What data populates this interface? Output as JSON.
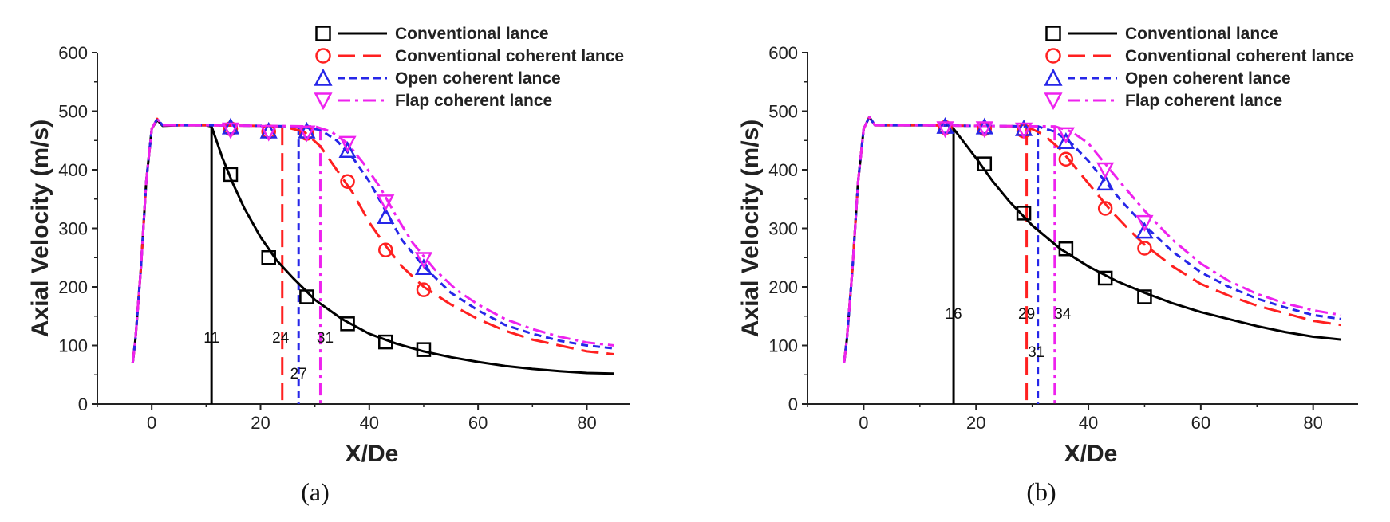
{
  "chart_data": [
    {
      "type": "line",
      "panel_label": "(a)",
      "xlabel": "X/De",
      "ylabel": "Axial Velocity (m/s)",
      "xlim": [
        -10,
        88
      ],
      "ylim": [
        0,
        600
      ],
      "xticks": [
        0,
        20,
        40,
        60,
        80
      ],
      "yticks": [
        0,
        100,
        200,
        300,
        400,
        500,
        600
      ],
      "legend_position": "top-right",
      "series": [
        {
          "name": "Conventional lance",
          "color": "#000000",
          "dash": "solid",
          "marker": "square",
          "curve": [
            [
              -3.5,
              70
            ],
            [
              -3,
              110
            ],
            [
              -2,
              230
            ],
            [
              -1,
              380
            ],
            [
              0,
              470
            ],
            [
              1,
              485
            ],
            [
              2,
              475
            ],
            [
              5,
              476
            ],
            [
              10,
              476
            ],
            [
              11,
              474
            ],
            [
              13,
              420
            ],
            [
              15,
              375
            ],
            [
              17,
              335
            ],
            [
              20,
              285
            ],
            [
              23,
              245
            ],
            [
              26,
              215
            ],
            [
              30,
              178
            ],
            [
              35,
              145
            ],
            [
              40,
              120
            ],
            [
              45,
              103
            ],
            [
              50,
              90
            ],
            [
              55,
              80
            ],
            [
              60,
              72
            ],
            [
              65,
              65
            ],
            [
              70,
              60
            ],
            [
              75,
              56
            ],
            [
              80,
              53
            ],
            [
              85,
              52
            ]
          ],
          "points": [
            [
              14.5,
              392
            ],
            [
              21.5,
              250
            ],
            [
              28.5,
              183
            ],
            [
              36,
              137
            ],
            [
              43,
              106
            ],
            [
              50,
              93
            ]
          ],
          "potential_core": 11
        },
        {
          "name": "Conventional coherent lance",
          "color": "#ff2020",
          "dash": "long-dash",
          "marker": "circle",
          "curve": [
            [
              -3.5,
              70
            ],
            [
              -3,
              110
            ],
            [
              -2,
              230
            ],
            [
              -1,
              380
            ],
            [
              0,
              470
            ],
            [
              1,
              487
            ],
            [
              2,
              476
            ],
            [
              5,
              476
            ],
            [
              10,
              476
            ],
            [
              20,
              475
            ],
            [
              24,
              474
            ],
            [
              28,
              465
            ],
            [
              31,
              440
            ],
            [
              34,
              400
            ],
            [
              37,
              360
            ],
            [
              40,
              310
            ],
            [
              43,
              270
            ],
            [
              46,
              235
            ],
            [
              50,
              200
            ],
            [
              55,
              170
            ],
            [
              60,
              145
            ],
            [
              65,
              125
            ],
            [
              70,
              110
            ],
            [
              75,
              100
            ],
            [
              80,
              90
            ],
            [
              85,
              85
            ]
          ],
          "points": [
            [
              14.5,
              470
            ],
            [
              21.5,
              465
            ],
            [
              28.5,
              462
            ],
            [
              36,
              380
            ],
            [
              43,
              263
            ],
            [
              50,
              195
            ]
          ],
          "potential_core": 24
        },
        {
          "name": "Open coherent lance",
          "color": "#2626e8",
          "dash": "short-dash",
          "marker": "triangle-up",
          "curve": [
            [
              -3.5,
              70
            ],
            [
              -3,
              110
            ],
            [
              -2,
              230
            ],
            [
              -1,
              380
            ],
            [
              0,
              470
            ],
            [
              1,
              487
            ],
            [
              2,
              476
            ],
            [
              5,
              476
            ],
            [
              10,
              476
            ],
            [
              20,
              475
            ],
            [
              27,
              474
            ],
            [
              31,
              468
            ],
            [
              34,
              450
            ],
            [
              37,
              420
            ],
            [
              40,
              380
            ],
            [
              43,
              330
            ],
            [
              46,
              280
            ],
            [
              50,
              235
            ],
            [
              55,
              190
            ],
            [
              60,
              160
            ],
            [
              65,
              135
            ],
            [
              70,
              120
            ],
            [
              75,
              108
            ],
            [
              80,
              100
            ],
            [
              85,
              95
            ]
          ],
          "points": [
            [
              14.5,
              473
            ],
            [
              21.5,
              466
            ],
            [
              28.5,
              466
            ],
            [
              36,
              433
            ],
            [
              43,
              320
            ],
            [
              50,
              233
            ]
          ],
          "potential_core": 27
        },
        {
          "name": "Flap coherent lance",
          "color": "#ee22ee",
          "dash": "dash-dot",
          "marker": "triangle-down",
          "curve": [
            [
              -3.5,
              70
            ],
            [
              -3,
              110
            ],
            [
              -2,
              230
            ],
            [
              -1,
              380
            ],
            [
              0,
              470
            ],
            [
              1,
              487
            ],
            [
              2,
              476
            ],
            [
              5,
              476
            ],
            [
              10,
              476
            ],
            [
              20,
              475
            ],
            [
              30,
              474
            ],
            [
              33,
              465
            ],
            [
              36,
              445
            ],
            [
              39,
              410
            ],
            [
              42,
              370
            ],
            [
              45,
              320
            ],
            [
              48,
              275
            ],
            [
              52,
              230
            ],
            [
              56,
              195
            ],
            [
              60,
              170
            ],
            [
              65,
              145
            ],
            [
              70,
              128
            ],
            [
              75,
              115
            ],
            [
              80,
              105
            ],
            [
              85,
              100
            ]
          ],
          "points": [
            [
              14.5,
              468
            ],
            [
              21.5,
              464
            ],
            [
              28.5,
              463
            ],
            [
              36,
              445
            ],
            [
              43,
              345
            ],
            [
              50,
              247
            ]
          ],
          "potential_core": 31
        }
      ],
      "vline_labels": [
        "11",
        "24",
        "27",
        "31"
      ]
    },
    {
      "type": "line",
      "panel_label": "(b)",
      "xlabel": "X/De",
      "ylabel": "Axial Velocity (m/s)",
      "xlim": [
        -10,
        88
      ],
      "ylim": [
        0,
        600
      ],
      "xticks": [
        0,
        20,
        40,
        60,
        80
      ],
      "yticks": [
        0,
        100,
        200,
        300,
        400,
        500,
        600
      ],
      "legend_position": "top-right",
      "series": [
        {
          "name": "Conventional lance",
          "color": "#000000",
          "dash": "solid",
          "marker": "square",
          "curve": [
            [
              -3.5,
              70
            ],
            [
              -3,
              110
            ],
            [
              -2,
              230
            ],
            [
              -1,
              380
            ],
            [
              0,
              470
            ],
            [
              1,
              490
            ],
            [
              2,
              476
            ],
            [
              5,
              476
            ],
            [
              10,
              476
            ],
            [
              15,
              476
            ],
            [
              16,
              470
            ],
            [
              18,
              445
            ],
            [
              20,
              420
            ],
            [
              23,
              380
            ],
            [
              26,
              345
            ],
            [
              30,
              305
            ],
            [
              35,
              265
            ],
            [
              40,
              235
            ],
            [
              45,
              210
            ],
            [
              50,
              190
            ],
            [
              55,
              172
            ],
            [
              60,
              157
            ],
            [
              65,
              145
            ],
            [
              70,
              133
            ],
            [
              75,
              123
            ],
            [
              80,
              115
            ],
            [
              85,
              110
            ]
          ],
          "points": [
            [
              21.5,
              410
            ],
            [
              28.5,
              326
            ],
            [
              36,
              265
            ],
            [
              43,
              215
            ],
            [
              50,
              183
            ]
          ],
          "potential_core": 16
        },
        {
          "name": "Conventional coherent lance",
          "color": "#ff2020",
          "dash": "long-dash",
          "marker": "circle",
          "curve": [
            [
              -3.5,
              70
            ],
            [
              -3,
              110
            ],
            [
              -2,
              230
            ],
            [
              -1,
              380
            ],
            [
              0,
              470
            ],
            [
              1,
              490
            ],
            [
              2,
              476
            ],
            [
              5,
              476
            ],
            [
              10,
              476
            ],
            [
              20,
              475
            ],
            [
              29,
              474
            ],
            [
              32,
              460
            ],
            [
              35,
              435
            ],
            [
              38,
              400
            ],
            [
              41,
              365
            ],
            [
              44,
              330
            ],
            [
              47,
              300
            ],
            [
              50,
              272
            ],
            [
              55,
              235
            ],
            [
              60,
              205
            ],
            [
              65,
              185
            ],
            [
              70,
              168
            ],
            [
              75,
              155
            ],
            [
              80,
              142
            ],
            [
              85,
              135
            ]
          ],
          "points": [
            [
              14.5,
              472
            ],
            [
              21.5,
              470
            ],
            [
              28.5,
              466
            ],
            [
              36,
              418
            ],
            [
              43,
              334
            ],
            [
              50,
              266
            ]
          ],
          "potential_core": 29
        },
        {
          "name": "Open coherent lance",
          "color": "#2626e8",
          "dash": "short-dash",
          "marker": "triangle-up",
          "curve": [
            [
              -3.5,
              70
            ],
            [
              -3,
              110
            ],
            [
              -2,
              230
            ],
            [
              -1,
              380
            ],
            [
              0,
              470
            ],
            [
              1,
              490
            ],
            [
              2,
              476
            ],
            [
              5,
              476
            ],
            [
              10,
              476
            ],
            [
              20,
              475
            ],
            [
              31,
              474
            ],
            [
              34,
              465
            ],
            [
              37,
              445
            ],
            [
              40,
              415
            ],
            [
              43,
              380
            ],
            [
              46,
              345
            ],
            [
              50,
              305
            ],
            [
              55,
              260
            ],
            [
              60,
              225
            ],
            [
              65,
              200
            ],
            [
              70,
              180
            ],
            [
              75,
              165
            ],
            [
              80,
              152
            ],
            [
              85,
              145
            ]
          ],
          "points": [
            [
              14.5,
              474
            ],
            [
              21.5,
              473
            ],
            [
              28.5,
              470
            ],
            [
              36,
              448
            ],
            [
              43,
              377
            ],
            [
              50,
              295
            ]
          ],
          "potential_core": 31
        },
        {
          "name": "Flap coherent lance",
          "color": "#ee22ee",
          "dash": "dash-dot",
          "marker": "triangle-down",
          "curve": [
            [
              -3.5,
              70
            ],
            [
              -3,
              110
            ],
            [
              -2,
              230
            ],
            [
              -1,
              380
            ],
            [
              0,
              470
            ],
            [
              1,
              490
            ],
            [
              2,
              476
            ],
            [
              5,
              476
            ],
            [
              10,
              476
            ],
            [
              20,
              475
            ],
            [
              34,
              474
            ],
            [
              37,
              465
            ],
            [
              40,
              445
            ],
            [
              43,
              410
            ],
            [
              46,
              375
            ],
            [
              50,
              330
            ],
            [
              55,
              280
            ],
            [
              60,
              240
            ],
            [
              65,
              210
            ],
            [
              70,
              188
            ],
            [
              75,
              172
            ],
            [
              80,
              160
            ],
            [
              85,
              152
            ]
          ],
          "points": [
            [
              14.5,
              470
            ],
            [
              21.5,
              470
            ],
            [
              28.5,
              468
            ],
            [
              36,
              460
            ],
            [
              43,
              400
            ],
            [
              50,
              310
            ]
          ],
          "potential_core": 34
        }
      ],
      "vline_labels": [
        "16",
        "29",
        "31",
        "34"
      ]
    }
  ]
}
